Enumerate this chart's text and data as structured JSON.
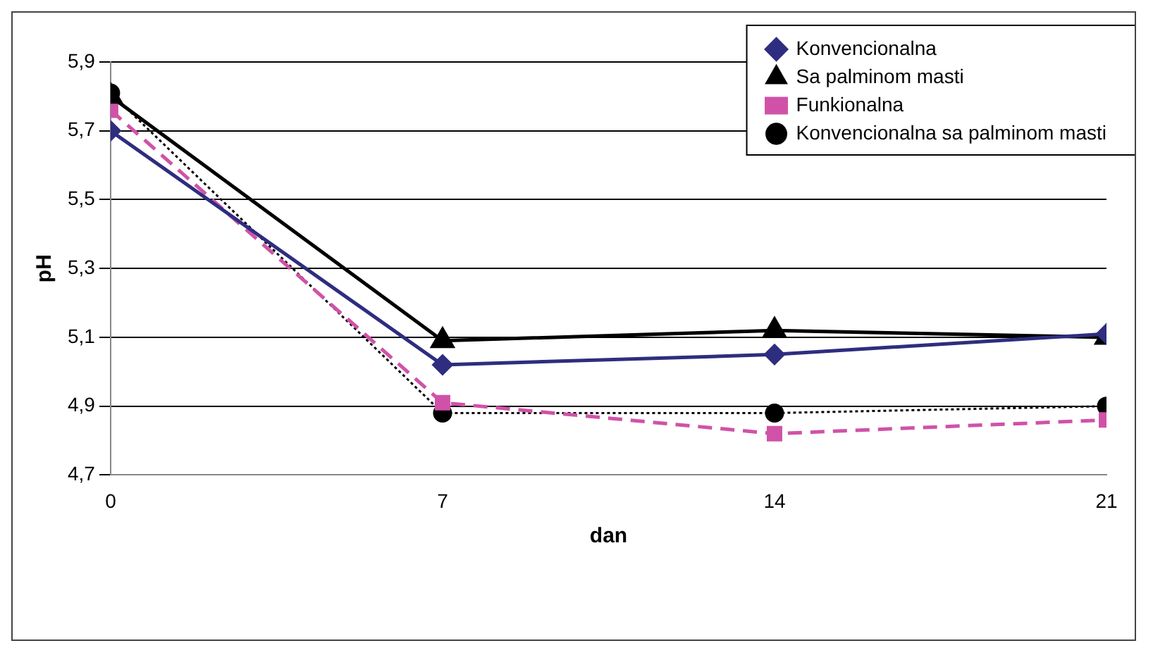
{
  "chart_data": {
    "type": "line",
    "xlabel": "dan",
    "ylabel": "pH",
    "x": [
      0,
      7,
      14,
      21
    ],
    "xlim": [
      0,
      21
    ],
    "xticks": [
      0,
      7,
      14,
      21
    ],
    "ylim": [
      4.7,
      5.9
    ],
    "yticks": [
      {
        "value": 4.7,
        "label": "4,7"
      },
      {
        "value": 4.9,
        "label": "4,9"
      },
      {
        "value": 5.1,
        "label": "5,1"
      },
      {
        "value": 5.3,
        "label": "5,3"
      },
      {
        "value": 5.5,
        "label": "5,5"
      },
      {
        "value": 5.7,
        "label": "5,7"
      },
      {
        "value": 5.9,
        "label": "5,9"
      }
    ],
    "grid": "y",
    "legend": "top right",
    "series": [
      {
        "name": "Konvencionalna",
        "color": "#2e2d7f",
        "values": [
          5.7,
          5.02,
          5.05,
          5.11
        ],
        "marker": "diamond",
        "line_style": "solid"
      },
      {
        "name": "Sa palminom masti",
        "color": "#000000",
        "values": [
          5.8,
          5.09,
          5.12,
          5.1
        ],
        "marker": "triangle",
        "line_style": "solid"
      },
      {
        "name": "Funkionalna",
        "color": "#d052a8",
        "values": [
          5.76,
          4.91,
          4.82,
          4.86
        ],
        "marker": "square",
        "line_style": "dashed"
      },
      {
        "name": "Konvencionalna sa palminom masti",
        "color": "#000000",
        "values": [
          5.81,
          4.88,
          4.88,
          4.9
        ],
        "marker": "circle",
        "line_style": "dotted"
      }
    ]
  }
}
